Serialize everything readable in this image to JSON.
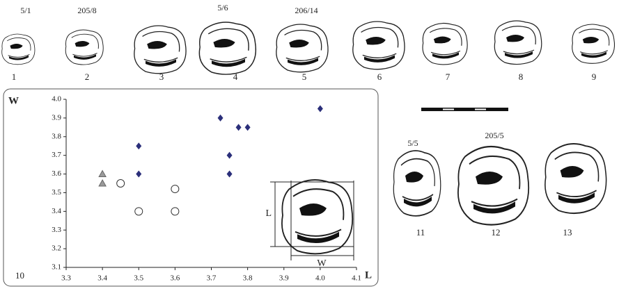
{
  "figure": {
    "teeth_top": [
      {
        "number": "1",
        "specimen": "5/1"
      },
      {
        "number": "2",
        "specimen": "205/8"
      },
      {
        "number": "3"
      },
      {
        "number": "4",
        "specimen": "5/6"
      },
      {
        "number": "5",
        "specimen": "206/14"
      },
      {
        "number": "6"
      },
      {
        "number": "7"
      },
      {
        "number": "8"
      },
      {
        "number": "9"
      }
    ],
    "teeth_right": [
      {
        "number": "11",
        "specimen": "5/5"
      },
      {
        "number": "12",
        "specimen": "205/5"
      },
      {
        "number": "13"
      }
    ],
    "panel_number": "10",
    "inset_labels": {
      "length": "L",
      "width": "W"
    }
  },
  "chart_data": {
    "type": "scatter",
    "x_label": "L",
    "y_label": "W",
    "xlim": [
      3.3,
      4.1
    ],
    "xticks": [
      3.3,
      3.4,
      3.5,
      3.6,
      3.7,
      3.8,
      3.9,
      {
        "value": 4,
        "label": "4.0"
      },
      4.1
    ],
    "ylim": [
      3.1,
      4
    ],
    "yticks": [
      3.1,
      3.2,
      3.3,
      3.4,
      3.5,
      3.6,
      3.7,
      3.8,
      3.9,
      {
        "value": 4,
        "label": "4.0"
      }
    ],
    "series": [
      {
        "marker": "diamond",
        "color": "#2b2f7a",
        "x": [
          3.5,
          3.5,
          3.725,
          3.75,
          3.75,
          3.775,
          3.8,
          4.0
        ],
        "values": [
          3.75,
          3.6,
          3.9,
          3.7,
          3.6,
          3.85,
          3.85,
          3.95
        ]
      },
      {
        "marker": "triangle",
        "color": "#9a9a9a",
        "x": [
          3.4,
          3.4
        ],
        "values": [
          3.6,
          3.55
        ]
      },
      {
        "marker": "circle",
        "color": "#ffffff",
        "x": [
          3.45,
          3.5,
          3.6,
          3.6
        ],
        "values": [
          3.55,
          3.4,
          3.52,
          3.4
        ]
      }
    ]
  }
}
